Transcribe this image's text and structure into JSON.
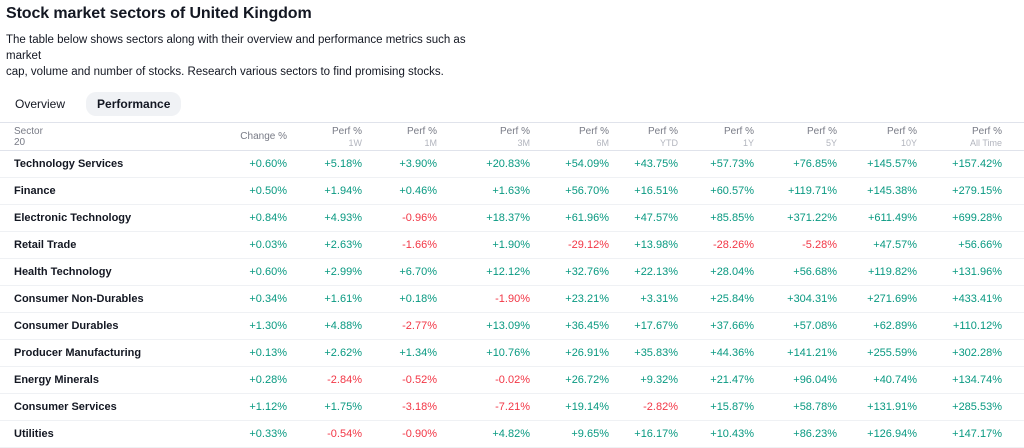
{
  "page": {
    "title": "Stock market sectors of United Kingdom",
    "description_lines": [
      "The table below shows sectors along with their overview and performance metrics such as market",
      "cap, volume and number of stocks. Research various sectors to find promising stocks."
    ]
  },
  "tabs": [
    {
      "label": "Overview",
      "active": false
    },
    {
      "label": "Performance",
      "active": true
    }
  ],
  "table": {
    "sector_column": {
      "label": "Sector",
      "count": "20"
    },
    "columns": [
      {
        "label": "Change %",
        "period": ""
      },
      {
        "label": "Perf %",
        "period": "1W"
      },
      {
        "label": "Perf %",
        "period": "1M"
      },
      {
        "label": "Perf %",
        "period": "3M"
      },
      {
        "label": "Perf %",
        "period": "6M"
      },
      {
        "label": "Perf %",
        "period": "YTD"
      },
      {
        "label": "Perf %",
        "period": "1Y"
      },
      {
        "label": "Perf %",
        "period": "5Y"
      },
      {
        "label": "Perf %",
        "period": "10Y"
      },
      {
        "label": "Perf %",
        "period": "All Time"
      }
    ],
    "rows": [
      {
        "sector": "Technology Services",
        "values": [
          "+0.60%",
          "+5.18%",
          "+3.90%",
          "+20.83%",
          "+54.09%",
          "+43.75%",
          "+57.73%",
          "+76.85%",
          "+145.57%",
          "+157.42%"
        ]
      },
      {
        "sector": "Finance",
        "values": [
          "+0.50%",
          "+1.94%",
          "+0.46%",
          "+1.63%",
          "+56.70%",
          "+16.51%",
          "+60.57%",
          "+119.71%",
          "+145.38%",
          "+279.15%"
        ]
      },
      {
        "sector": "Electronic Technology",
        "values": [
          "+0.84%",
          "+4.93%",
          "-0.96%",
          "+18.37%",
          "+61.96%",
          "+47.57%",
          "+85.85%",
          "+371.22%",
          "+611.49%",
          "+699.28%"
        ]
      },
      {
        "sector": "Retail Trade",
        "values": [
          "+0.03%",
          "+2.63%",
          "-1.66%",
          "+1.90%",
          "-29.12%",
          "+13.98%",
          "-28.26%",
          "-5.28%",
          "+47.57%",
          "+56.66%"
        ]
      },
      {
        "sector": "Health Technology",
        "values": [
          "+0.60%",
          "+2.99%",
          "+6.70%",
          "+12.12%",
          "+32.76%",
          "+22.13%",
          "+28.04%",
          "+56.68%",
          "+119.82%",
          "+131.96%"
        ]
      },
      {
        "sector": "Consumer Non-Durables",
        "values": [
          "+0.34%",
          "+1.61%",
          "+0.18%",
          "-1.90%",
          "+23.21%",
          "+3.31%",
          "+25.84%",
          "+304.31%",
          "+271.69%",
          "+433.41%"
        ]
      },
      {
        "sector": "Consumer Durables",
        "values": [
          "+1.30%",
          "+4.88%",
          "-2.77%",
          "+13.09%",
          "+36.45%",
          "+17.67%",
          "+37.66%",
          "+57.08%",
          "+62.89%",
          "+110.12%"
        ]
      },
      {
        "sector": "Producer Manufacturing",
        "values": [
          "+0.13%",
          "+2.62%",
          "+1.34%",
          "+10.76%",
          "+26.91%",
          "+35.83%",
          "+44.36%",
          "+141.21%",
          "+255.59%",
          "+302.28%"
        ]
      },
      {
        "sector": "Energy Minerals",
        "values": [
          "+0.28%",
          "-2.84%",
          "-0.52%",
          "-0.02%",
          "+26.72%",
          "+9.32%",
          "+21.47%",
          "+96.04%",
          "+40.74%",
          "+134.74%"
        ]
      },
      {
        "sector": "Consumer Services",
        "values": [
          "+1.12%",
          "+1.75%",
          "-3.18%",
          "-7.21%",
          "+19.14%",
          "-2.82%",
          "+15.87%",
          "+58.78%",
          "+131.91%",
          "+285.53%"
        ]
      },
      {
        "sector": "Utilities",
        "values": [
          "+0.33%",
          "-0.54%",
          "-0.90%",
          "+4.82%",
          "+9.65%",
          "+16.17%",
          "+10.43%",
          "+86.23%",
          "+126.94%",
          "+147.17%"
        ]
      }
    ]
  },
  "colors": {
    "positive": "#089981",
    "negative": "#F23645"
  }
}
